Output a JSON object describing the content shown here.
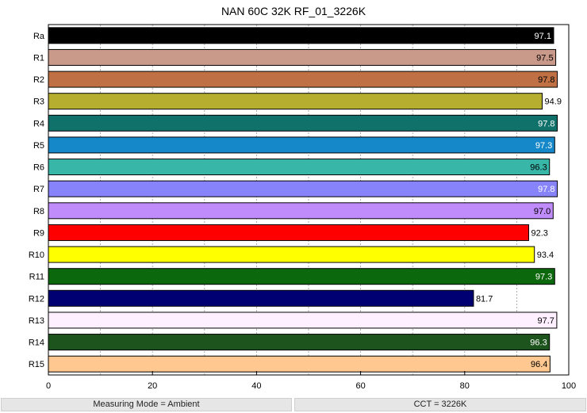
{
  "chart_data": {
    "type": "bar",
    "orientation": "horizontal",
    "title": "NAN 60C 32K RF_01_3226K",
    "xlabel": "",
    "ylabel": "",
    "xlim": [
      0,
      100
    ],
    "x_ticks": [
      "0",
      "20",
      "40",
      "60",
      "80",
      "100"
    ],
    "grid": "vertical dashed every 10",
    "categories": [
      "Ra",
      "R1",
      "R2",
      "R3",
      "R4",
      "R5",
      "R6",
      "R7",
      "R8",
      "R9",
      "R10",
      "R11",
      "R12",
      "R13",
      "R14",
      "R15"
    ],
    "values": [
      97.1,
      97.5,
      97.8,
      94.9,
      97.8,
      97.3,
      96.3,
      97.8,
      97.0,
      92.3,
      93.4,
      97.3,
      81.7,
      97.7,
      96.3,
      96.4
    ],
    "value_labels": [
      "97.1",
      "97.5",
      "97.8",
      "94.9",
      "97.8",
      "97.3",
      "96.3",
      "97.8",
      "97.0",
      "92.3",
      "93.4",
      "97.3",
      "81.7",
      "97.7",
      "96.3",
      "96.4"
    ],
    "colors": [
      "#000000",
      "#c9998a",
      "#bf7045",
      "#b5ae2e",
      "#10706a",
      "#1488c8",
      "#38b7a9",
      "#8783fb",
      "#c08bfb",
      "#ff0000",
      "#ffff00",
      "#0c680c",
      "#000073",
      "#fff0ff",
      "#1d531d",
      "#ffc890"
    ],
    "label_colors": [
      "#ffffff",
      "#000000",
      "#000000",
      "#000000",
      "#ffffff",
      "#ffffff",
      "#000000",
      "#ffffff",
      "#000000",
      "#000000",
      "#000000",
      "#ffffff",
      "#000000",
      "#000000",
      "#ffffff",
      "#000000"
    ]
  },
  "footer": {
    "left": "Measuring Mode = Ambient",
    "right": "CCT = 3226K"
  }
}
